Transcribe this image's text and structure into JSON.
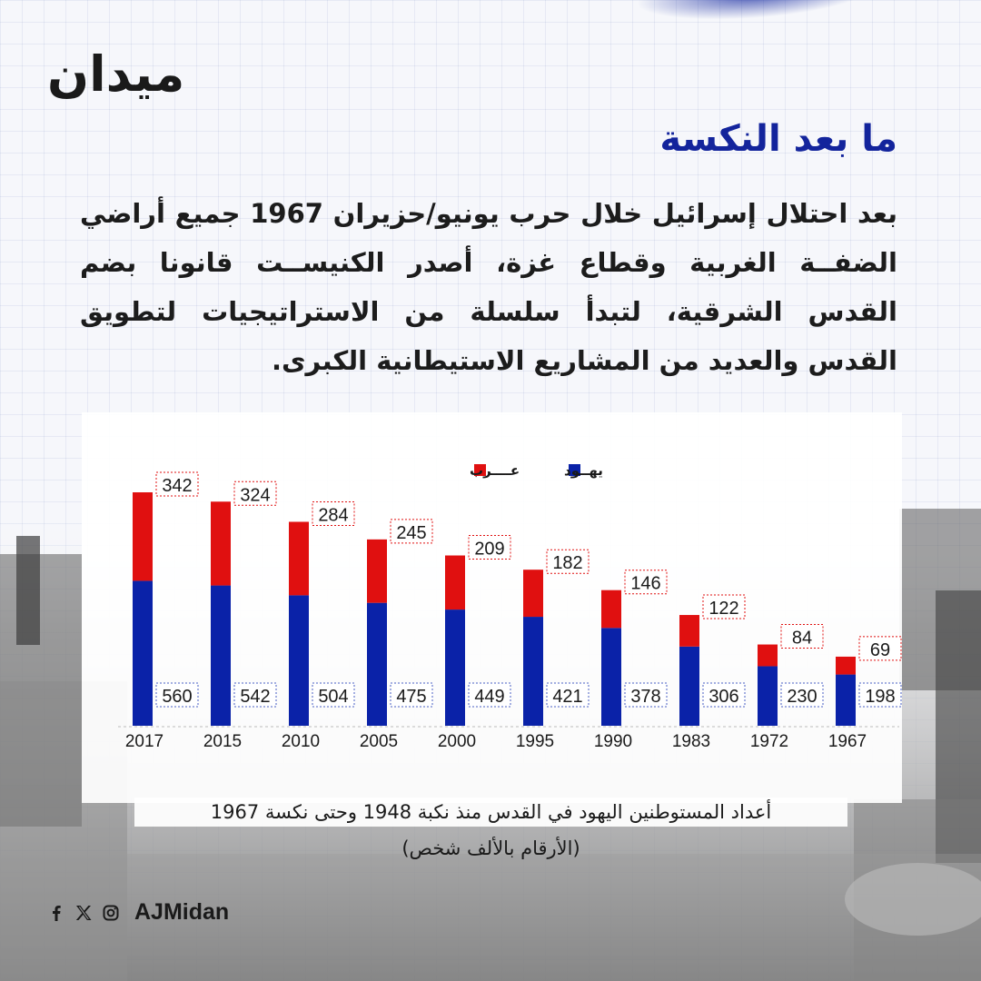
{
  "brand": {
    "logo_text": "ميدان",
    "accent_color": "#13249c"
  },
  "header": {
    "title": "ما بعد النكسة"
  },
  "intro": {
    "text": "بعد احتلال إسرائيل خلال حرب يونيو/حزيران 1967 جميع أراضي الضفــة الغربية وقطاع غزة، أصدر الكنيســت قانونا بضم القدس الشرقية، لتبدأ سلسلة من الاستراتيجيات لتطويق القدس والعديد من المشاريع الاستيطانية الكبرى."
  },
  "chart_data": {
    "type": "bar",
    "stacked": true,
    "categories": [
      "2017",
      "2015",
      "2010",
      "2005",
      "2000",
      "1995",
      "1990",
      "1983",
      "1972",
      "1967"
    ],
    "series": [
      {
        "name": "يهــود",
        "color": "#0a22a8",
        "values": [
          560,
          542,
          504,
          475,
          449,
          421,
          378,
          306,
          230,
          198
        ]
      },
      {
        "name": "عــــرب",
        "color": "#e01010",
        "values": [
          342,
          324,
          284,
          245,
          209,
          182,
          146,
          122,
          84,
          69
        ]
      }
    ],
    "legend_position": "top-center",
    "grid": false,
    "ylim": [
      0,
      902
    ]
  },
  "caption": {
    "line1": "أعداد المستوطنين اليهود في القدس منذ نكبة 1948 وحتى نكسة 1967",
    "line2": "(الأرقام بالألف شخص)"
  },
  "footer": {
    "icons": [
      "facebook-icon",
      "x-icon",
      "instagram-icon"
    ],
    "handle": "AJMidan"
  }
}
